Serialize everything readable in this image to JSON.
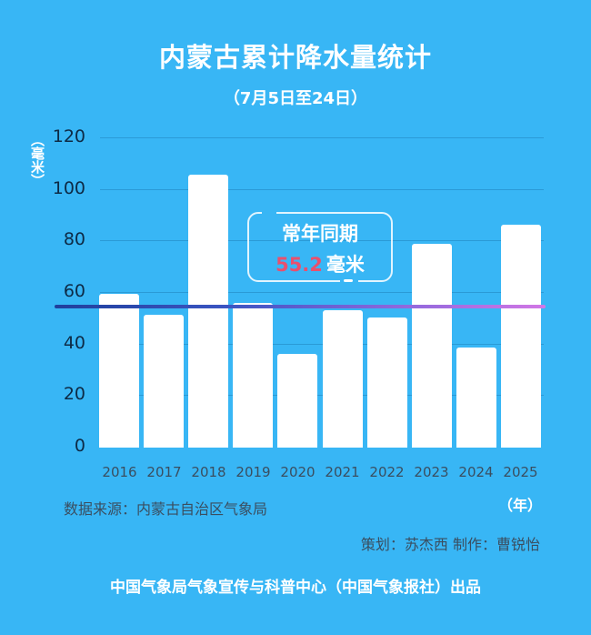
{
  "header": {
    "title": "内蒙古累计降水量统计",
    "subtitle": "（7月5日至24日）"
  },
  "axis": {
    "y_unit": "（毫米）",
    "x_unit": "（年）",
    "y_ticks": [
      "0",
      "20",
      "40",
      "60",
      "80",
      "100",
      "120"
    ]
  },
  "average": {
    "label": "常年同期",
    "value": "55.2",
    "unit": "毫米"
  },
  "footer": {
    "source": "数据来源：内蒙古自治区气象局",
    "credits": "策划：苏杰西 制作：曹锐怡",
    "publisher": "中国气象局气象宣传与科普中心（中国气象报社）出品"
  },
  "colors": {
    "background": "#38b6f5",
    "bar": "#ffffff",
    "avg_value": "#e8506e",
    "avg_line_start": "#1f3f9c",
    "avg_line_end": "#d277e6"
  },
  "chart_data": {
    "type": "bar",
    "title": "内蒙古累计降水量统计",
    "subtitle": "（7月5日至24日）",
    "categories": [
      "2016",
      "2017",
      "2018",
      "2019",
      "2020",
      "2021",
      "2022",
      "2023",
      "2024",
      "2025"
    ],
    "values": [
      59.4,
      51.2,
      105.5,
      55.8,
      36.0,
      53.0,
      50.2,
      78.8,
      38.5,
      86.2
    ],
    "xlabel": "（年）",
    "ylabel": "（毫米）",
    "ylim": [
      0,
      120
    ],
    "yticks": [
      0,
      20,
      40,
      60,
      80,
      100,
      120
    ],
    "grid": true,
    "reference_line": {
      "label": "常年同期",
      "value": 55.2,
      "unit": "毫米"
    },
    "legend": null
  }
}
